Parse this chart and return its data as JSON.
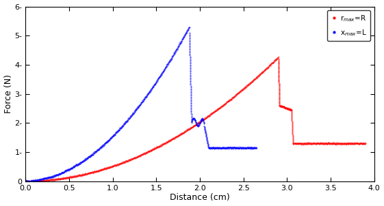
{
  "title": "",
  "xlabel": "Distance (cm)",
  "ylabel": "Force (N)",
  "xlim": [
    0,
    4
  ],
  "ylim": [
    0,
    6
  ],
  "xticks": [
    0,
    0.5,
    1,
    1.5,
    2,
    2.5,
    3,
    3.5,
    4
  ],
  "yticks": [
    0,
    1,
    2,
    3,
    4,
    5,
    6
  ],
  "legend_red": "r$_{max}$=R",
  "legend_blue": "x$_{max}$=L",
  "red_color": "#FF0000",
  "blue_color": "#0000FF",
  "bg_color": "#FFFFFF"
}
